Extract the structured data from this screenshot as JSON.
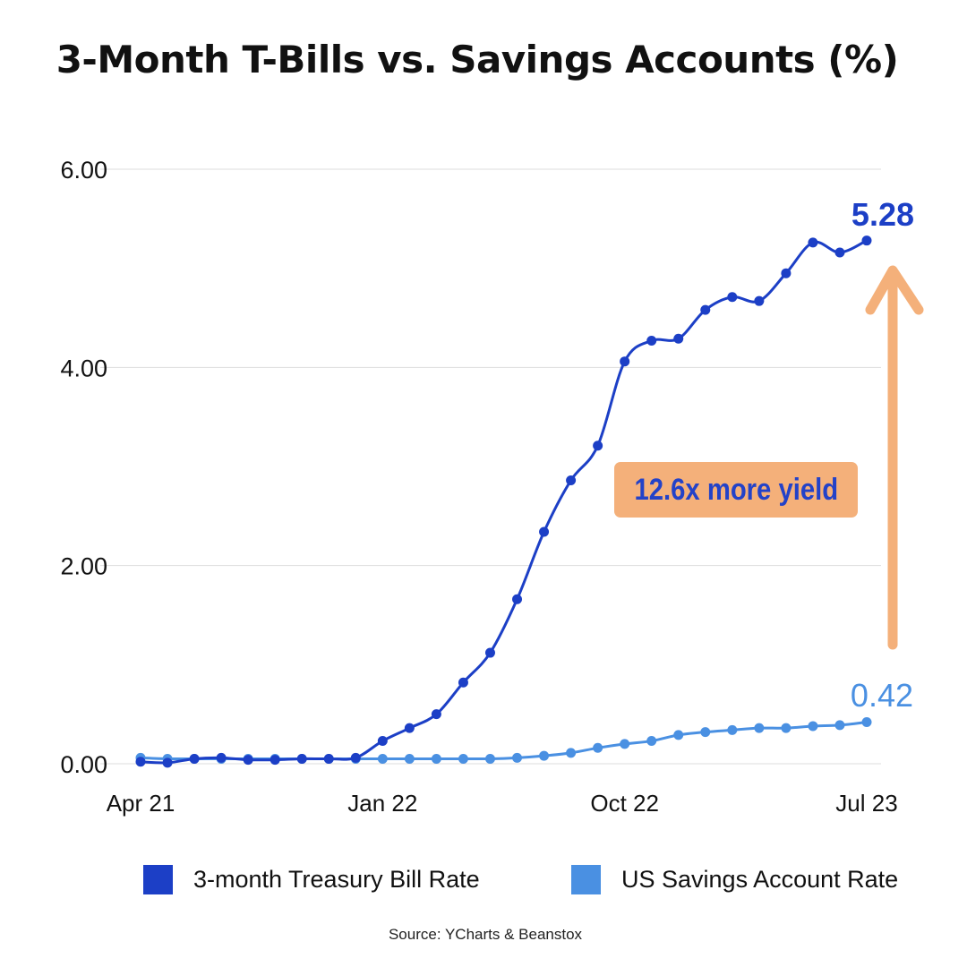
{
  "title": "3-Month T-Bills vs. Savings Accounts (%)",
  "source": "Source:  YCharts & Beanstox",
  "callout": "12.6x more yield",
  "colors": {
    "tbill": "#1c3fc6",
    "savings": "#4a90e2",
    "arrow": "#f4b07a",
    "text": "#111111"
  },
  "legend": [
    {
      "label": "3-month Treasury Bill Rate",
      "color": "#1c3fc6"
    },
    {
      "label": "US Savings Account Rate",
      "color": "#4a90e2"
    }
  ],
  "chart_data": {
    "type": "line",
    "title": "3-Month T-Bills vs. Savings Accounts (%)",
    "xlabel": "",
    "ylabel": "",
    "ylim": [
      0,
      6
    ],
    "yticks": [
      "0.00",
      "2.00",
      "4.00",
      "6.00"
    ],
    "xtick_labels": [
      {
        "label": "Apr 21",
        "index": 0
      },
      {
        "label": "Jan 22",
        "index": 9
      },
      {
        "label": "Oct 22",
        "index": 18
      },
      {
        "label": "Jul 23",
        "index": 27
      }
    ],
    "x": [
      "Apr 21",
      "May 21",
      "Jun 21",
      "Jul 21",
      "Aug 21",
      "Sep 21",
      "Oct 21",
      "Nov 21",
      "Dec 21",
      "Jan 22",
      "Feb 22",
      "Mar 22",
      "Apr 22",
      "May 22",
      "Jun 22",
      "Jul 22",
      "Aug 22",
      "Sep 22",
      "Oct 22",
      "Nov 22",
      "Dec 22",
      "Jan 23",
      "Feb 23",
      "Mar 23",
      "Apr 23",
      "May 23",
      "Jun 23",
      "Jul 23"
    ],
    "series": [
      {
        "name": "3-month Treasury Bill Rate",
        "color": "#1c3fc6",
        "values": [
          0.02,
          0.01,
          0.05,
          0.06,
          0.04,
          0.04,
          0.05,
          0.05,
          0.06,
          0.23,
          0.36,
          0.5,
          0.82,
          1.12,
          1.66,
          2.34,
          2.86,
          3.21,
          4.06,
          4.27,
          4.29,
          4.58,
          4.71,
          4.67,
          4.95,
          5.26,
          5.16,
          5.28
        ],
        "end_label": "5.28"
      },
      {
        "name": "US Savings Account Rate",
        "color": "#4a90e2",
        "values": [
          0.06,
          0.05,
          0.05,
          0.05,
          0.05,
          0.05,
          0.05,
          0.05,
          0.05,
          0.05,
          0.05,
          0.05,
          0.05,
          0.05,
          0.06,
          0.08,
          0.11,
          0.16,
          0.2,
          0.23,
          0.29,
          0.32,
          0.34,
          0.36,
          0.36,
          0.38,
          0.39,
          0.42
        ],
        "end_label": "0.42"
      }
    ]
  }
}
